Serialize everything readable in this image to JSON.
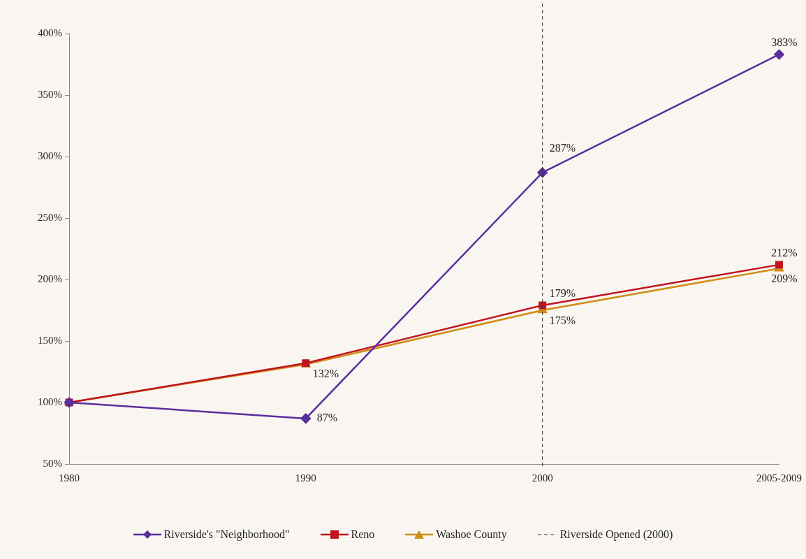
{
  "chart_data": {
    "type": "line",
    "categories": [
      "1980",
      "1990",
      "2000",
      "2005-2009"
    ],
    "series": [
      {
        "name": "Riverside's \"Neighborhood\"",
        "color": "#5a2d9c",
        "marker": "diamond",
        "values": [
          100,
          87,
          287,
          383
        ],
        "value_labels": [
          null,
          "87%",
          "287%",
          "383%"
        ]
      },
      {
        "name": "Reno",
        "color": "#c0141f",
        "marker": "square",
        "values": [
          100,
          132,
          179,
          212
        ],
        "value_labels": [
          null,
          "132%",
          "179%",
          "212%"
        ]
      },
      {
        "name": "Washoe County",
        "color": "#d08e16",
        "marker": "triangle",
        "values": [
          100,
          131,
          175,
          209
        ],
        "value_labels": [
          null,
          null,
          "175%",
          "209%"
        ]
      }
    ],
    "ylim": [
      50,
      400
    ],
    "yticks": [
      {
        "value": 50,
        "label": "50%"
      },
      {
        "value": 100,
        "label": "100%"
      },
      {
        "value": 150,
        "label": "150%"
      },
      {
        "value": 200,
        "label": "200%"
      },
      {
        "value": 250,
        "label": "250%"
      },
      {
        "value": 300,
        "label": "300%"
      },
      {
        "value": 350,
        "label": "350%"
      },
      {
        "value": 400,
        "label": "400%"
      }
    ],
    "ref_lines": [
      {
        "axis": "x",
        "value": "2000",
        "label": "Riverside Opened (2000)",
        "color": "#333333",
        "line_style": "dashed"
      }
    ],
    "grid": false,
    "legend": "bottom",
    "line_style": "solid"
  }
}
